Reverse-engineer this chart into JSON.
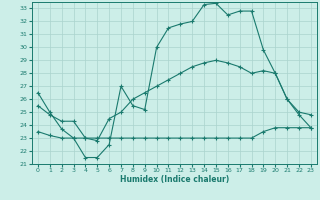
{
  "title": "",
  "xlabel": "Humidex (Indice chaleur)",
  "ylabel": "",
  "bg_color": "#cceee8",
  "line_color": "#1a7a6e",
  "grid_color": "#aad4ce",
  "xlim": [
    -0.5,
    23.5
  ],
  "ylim": [
    21,
    33.5
  ],
  "yticks": [
    21,
    22,
    23,
    24,
    25,
    26,
    27,
    28,
    29,
    30,
    31,
    32,
    33
  ],
  "xticks": [
    0,
    1,
    2,
    3,
    4,
    5,
    6,
    7,
    8,
    9,
    10,
    11,
    12,
    13,
    14,
    15,
    16,
    17,
    18,
    19,
    20,
    21,
    22,
    23
  ],
  "line1_x": [
    0,
    1,
    2,
    3,
    4,
    5,
    6,
    7,
    8,
    9,
    10,
    11,
    12,
    13,
    14,
    15,
    16,
    17,
    18,
    19,
    20,
    21,
    22,
    23
  ],
  "line1_y": [
    26.5,
    25.0,
    23.7,
    23.0,
    21.5,
    21.5,
    22.5,
    27.0,
    25.5,
    25.2,
    30.0,
    31.5,
    31.8,
    32.0,
    33.3,
    33.4,
    32.5,
    32.8,
    32.8,
    29.8,
    28.0,
    26.0,
    24.8,
    23.8
  ],
  "line2_x": [
    0,
    1,
    2,
    3,
    4,
    5,
    6,
    7,
    8,
    9,
    10,
    11,
    12,
    13,
    14,
    15,
    16,
    17,
    18,
    19,
    20,
    21,
    22,
    23
  ],
  "line2_y": [
    25.5,
    24.8,
    24.3,
    24.3,
    23.0,
    22.8,
    24.5,
    25.0,
    26.0,
    26.5,
    27.0,
    27.5,
    28.0,
    28.5,
    28.8,
    29.0,
    28.8,
    28.5,
    28.0,
    28.2,
    28.0,
    26.0,
    25.0,
    24.8
  ],
  "line3_x": [
    0,
    1,
    2,
    3,
    4,
    5,
    6,
    7,
    8,
    9,
    10,
    11,
    12,
    13,
    14,
    15,
    16,
    17,
    18,
    19,
    20,
    21,
    22,
    23
  ],
  "line3_y": [
    23.5,
    23.2,
    23.0,
    23.0,
    23.0,
    23.0,
    23.0,
    23.0,
    23.0,
    23.0,
    23.0,
    23.0,
    23.0,
    23.0,
    23.0,
    23.0,
    23.0,
    23.0,
    23.0,
    23.5,
    23.8,
    23.8,
    23.8,
    23.8
  ]
}
